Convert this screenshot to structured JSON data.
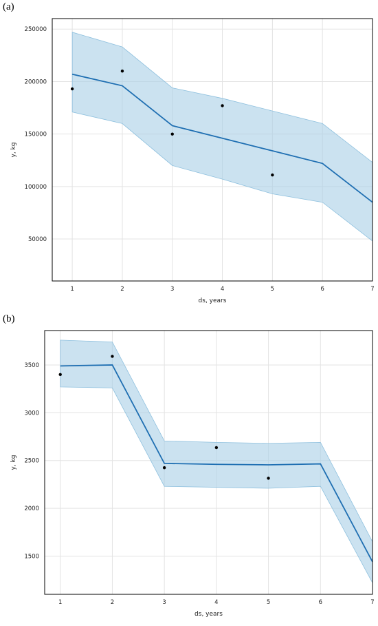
{
  "colors": {
    "line": "#1f6fb2",
    "band": "#a9cfe6",
    "band_edge": "#8ec0de",
    "points": "#000000",
    "grid": "#e3e3e3"
  },
  "panels": [
    {
      "label": "(a)"
    },
    {
      "label": "(b)"
    }
  ],
  "chart_data": [
    {
      "type": "line",
      "xlabel": "ds, years",
      "ylabel": "y, kg",
      "xlim": [
        0.6,
        7
      ],
      "ylim": [
        10000,
        260000
      ],
      "xticks": [
        1,
        2,
        3,
        4,
        5,
        6,
        7
      ],
      "yticks": [
        50000,
        100000,
        150000,
        200000,
        250000
      ],
      "grid": true,
      "series": [
        {
          "role": "forecast",
          "x": [
            1,
            2,
            3,
            4,
            5,
            6,
            7
          ],
          "values": [
            207000,
            196000,
            158000,
            146000,
            134000,
            122000,
            85000
          ]
        },
        {
          "role": "upper",
          "x": [
            1,
            2,
            3,
            4,
            5,
            6,
            7
          ],
          "values": [
            247000,
            233000,
            194000,
            184000,
            172000,
            160000,
            123000
          ]
        },
        {
          "role": "lower",
          "x": [
            1,
            2,
            3,
            4,
            5,
            6,
            7
          ],
          "values": [
            171000,
            160000,
            120000,
            107000,
            93000,
            85000,
            48000
          ]
        },
        {
          "role": "observed",
          "x": [
            1,
            2,
            3,
            4,
            5
          ],
          "values": [
            193000,
            210000,
            150000,
            177000,
            111000
          ]
        }
      ]
    },
    {
      "type": "line",
      "xlabel": "ds, years",
      "ylabel": "y, kg",
      "xlim": [
        0.7,
        7
      ],
      "ylim": [
        1100,
        3860
      ],
      "xticks": [
        1,
        2,
        3,
        4,
        5,
        6,
        7
      ],
      "yticks": [
        1500,
        2000,
        2500,
        3000,
        3500
      ],
      "grid": true,
      "series": [
        {
          "role": "forecast",
          "x": [
            1,
            2,
            3,
            4,
            5,
            6,
            7
          ],
          "values": [
            3490,
            3500,
            2470,
            2460,
            2455,
            2465,
            1440
          ]
        },
        {
          "role": "upper",
          "x": [
            1,
            2,
            3,
            4,
            5,
            6,
            7
          ],
          "values": [
            3760,
            3740,
            2705,
            2690,
            2680,
            2690,
            1650
          ]
        },
        {
          "role": "lower",
          "x": [
            1,
            2,
            3,
            4,
            5,
            6,
            7
          ],
          "values": [
            3270,
            3260,
            2230,
            2220,
            2210,
            2230,
            1220
          ]
        },
        {
          "role": "observed",
          "x": [
            1,
            2,
            3,
            4,
            5
          ],
          "values": [
            3400,
            3590,
            2425,
            2635,
            2315
          ]
        }
      ]
    }
  ]
}
